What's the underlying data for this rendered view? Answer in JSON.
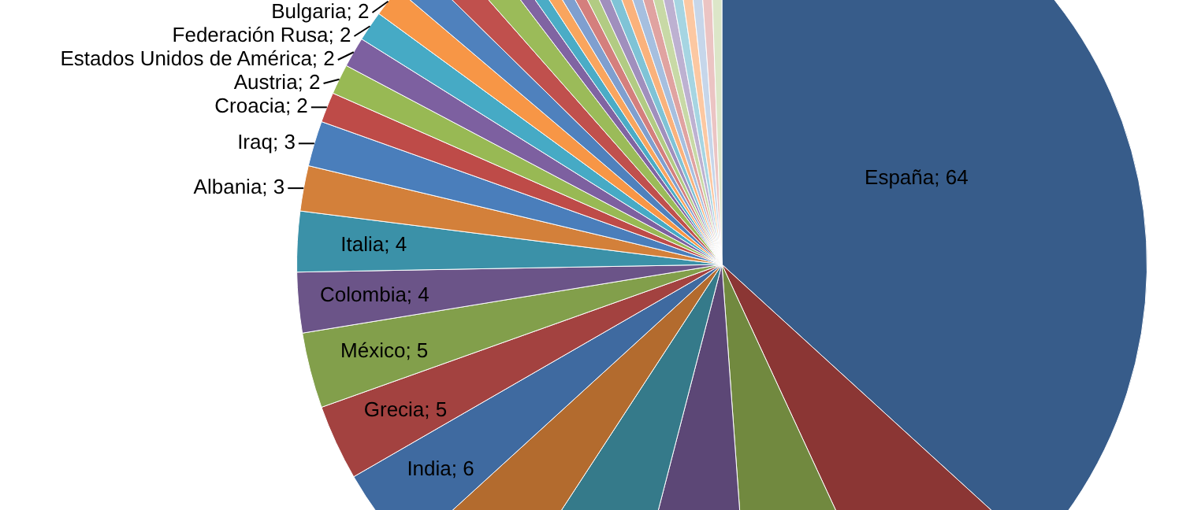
{
  "chart_data": {
    "type": "pie",
    "categories": [
      "España",
      null,
      null,
      null,
      null,
      null,
      "India",
      "Grecia",
      "México",
      "Colombia",
      "Italia",
      "Albania",
      "Iraq",
      "Croacia",
      "Austria",
      "Estados Unidos de América",
      "Federación Rusa",
      "Bulgaria",
      null,
      null,
      null,
      null,
      null,
      null,
      null,
      null,
      null,
      null,
      null,
      null,
      null,
      null,
      null,
      null,
      null,
      null,
      null,
      null,
      null
    ],
    "values": [
      64,
      11,
      10,
      9,
      9,
      7,
      6,
      5,
      5,
      4,
      4,
      3,
      3,
      2,
      2,
      2,
      2,
      2,
      2,
      2,
      2,
      1,
      1,
      1,
      1,
      1,
      1,
      1,
      1,
      1,
      1,
      1,
      1,
      1,
      1,
      1,
      1,
      1,
      1
    ],
    "value_labels": [
      "64",
      null,
      null,
      null,
      null,
      null,
      "6",
      "5",
      "5",
      "4",
      "4",
      "3",
      "3",
      "2",
      "2",
      "2",
      "2",
      "2",
      null,
      null,
      null,
      null,
      null,
      null,
      null,
      null,
      null,
      null,
      null,
      null,
      null,
      null,
      null,
      null,
      null,
      null,
      null,
      null,
      null
    ],
    "colors": [
      "#375c8a",
      "#8b3634",
      "#71893f",
      "#5c4776",
      "#357a8a",
      "#b36b2e",
      "#3f6aa0",
      "#a34240",
      "#829f4b",
      "#6b5488",
      "#3b91a8",
      "#d3803a",
      "#4a7ebb",
      "#be4b48",
      "#98b954",
      "#7d60a0",
      "#46aac5",
      "#f79646",
      "#4f81bd",
      "#c0504d",
      "#9bbb59",
      "#8064a2",
      "#4bacc6",
      "#f9a55e",
      "#7f9fcf",
      "#d47f7d",
      "#b2cb83",
      "#a08fbd",
      "#7fc3d6",
      "#fab27c",
      "#a6bfdf",
      "#e0a3a1",
      "#c8d9a6",
      "#bdb1d1",
      "#a6d5e2",
      "#fcc8a2",
      "#c6d6ea",
      "#ebc4c3",
      "#dce6c8"
    ]
  }
}
